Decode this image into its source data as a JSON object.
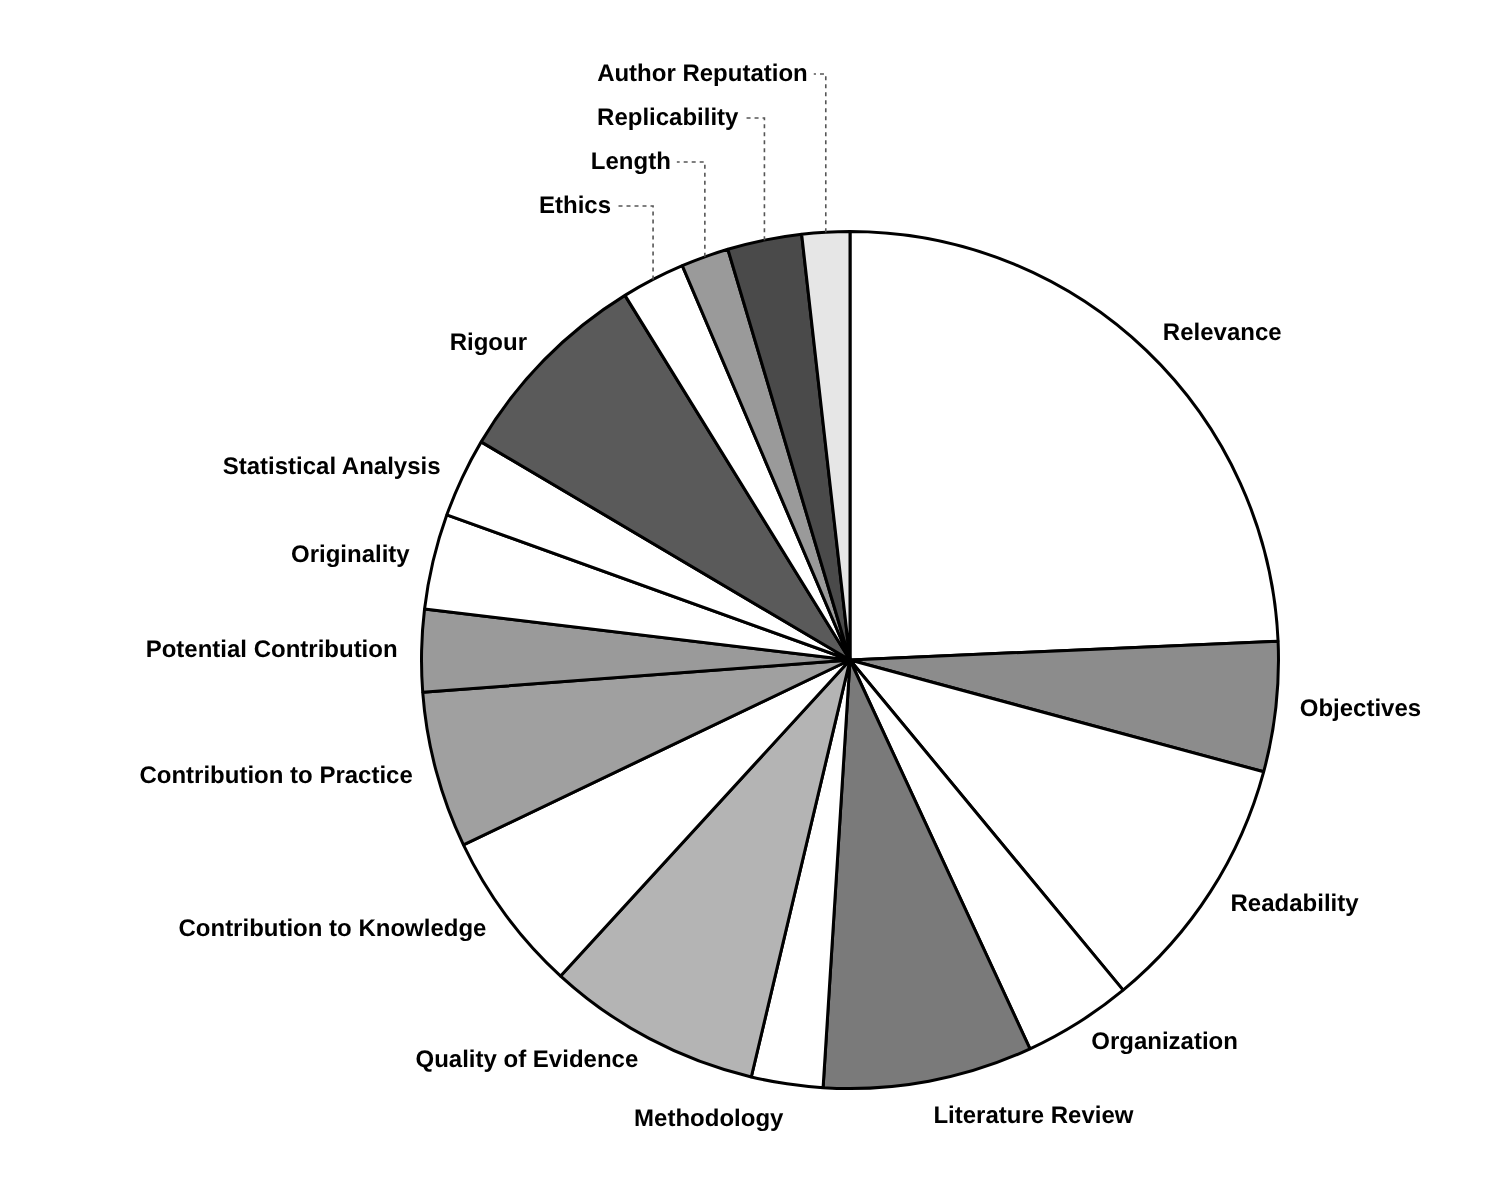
{
  "chart_data": {
    "type": "pie",
    "categories": [
      "Relevance",
      "Objectives",
      "Readability",
      "Organization",
      "Literature Review",
      "Methodology",
      "Quality of Evidence",
      "Contribution to Knowledge",
      "Contribution to Practice",
      "Potential Contribution",
      "Originality",
      "Statistical Analysis",
      "Rigour",
      "Ethics",
      "Length",
      "Replicability",
      "Author Reputation"
    ],
    "values": [
      24.3,
      4.9,
      9.8,
      4.1,
      7.9,
      2.7,
      8.1,
      6.1,
      5.9,
      3.1,
      3.6,
      3.0,
      7.7,
      2.4,
      1.8,
      2.8,
      1.8
    ],
    "colors": [
      "#ffffff",
      "#8c8c8c",
      "#ffffff",
      "#ffffff",
      "#7a7a7a",
      "#ffffff",
      "#b4b4b4",
      "#ffffff",
      "#a0a0a0",
      "#9a9a9a",
      "#ffffff",
      "#ffffff",
      "#5a5a5a",
      "#ffffff",
      "#9a9a9a",
      "#4a4a4a",
      "#e6e6e6"
    ],
    "legend": false
  }
}
